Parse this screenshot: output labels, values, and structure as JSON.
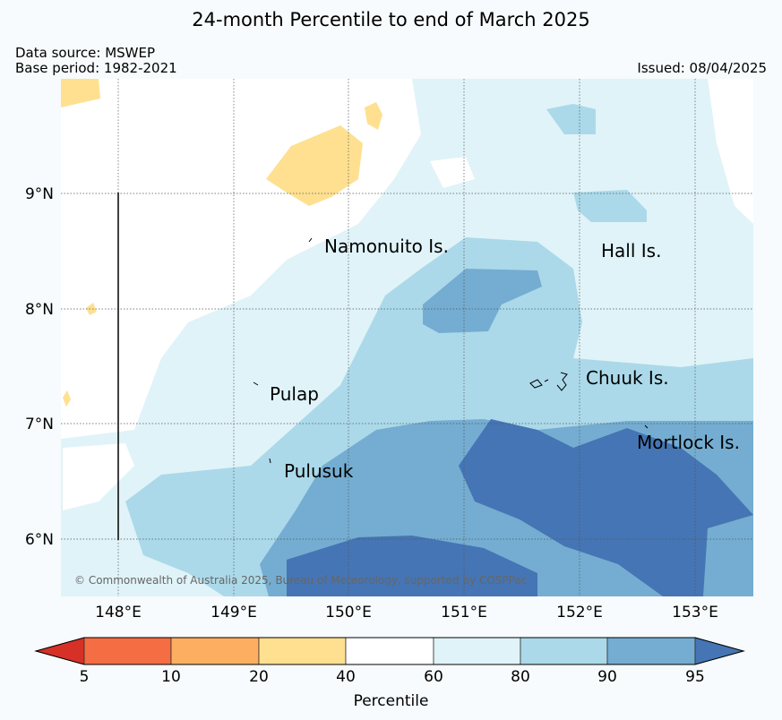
{
  "header": {
    "title": "24-month Percentile to end of March 2025",
    "data_source": "Data source: MSWEP",
    "base_period": "Base period: 1982-2021",
    "issued": "Issued: 08/04/2025"
  },
  "map": {
    "lon_labels": [
      "148°E",
      "149°E",
      "150°E",
      "151°E",
      "152°E",
      "153°E"
    ],
    "lat_labels": [
      "9°N",
      "8°N",
      "7°N",
      "6°N"
    ],
    "places": [
      "Namonuito Is.",
      "Hall Is.",
      "Pulap",
      "Chuuk Is.",
      "Pulusuk",
      "Mortlock Is."
    ],
    "copyright": "© Commonwealth of Australia 2025, Bureau of Meteorology, supported by COSPPac"
  },
  "colorbar": {
    "label": "Percentile",
    "ticks": [
      "5",
      "10",
      "20",
      "40",
      "60",
      "80",
      "90",
      "95"
    ],
    "colors": [
      "#d73027",
      "#f46d43",
      "#fdae61",
      "#fee090",
      "#ffffff",
      "#e0f3f8",
      "#abd9e9",
      "#74add1",
      "#4575b4"
    ]
  }
}
